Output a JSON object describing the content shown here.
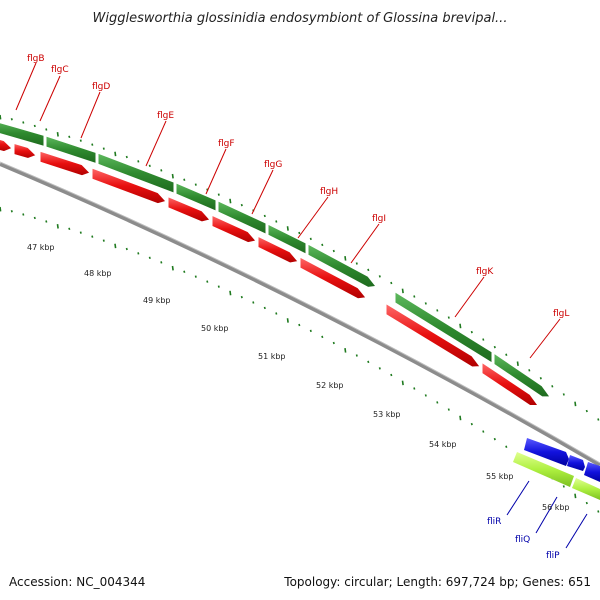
{
  "title": "Wigglesworthia glossinidia endosymbiont of Glossina brevipal...",
  "footer": {
    "accession": "Accession: NC_004344",
    "info": "Topology: circular; Length: 697,724 bp; Genes: 651"
  },
  "colors": {
    "cds_green": "#2f8a2f",
    "cds_red": "#e81010",
    "cds_blue": "#1212dd",
    "cds_light_green": "#aef040",
    "label_red": "#cc0000",
    "label_blue": "#0000aa",
    "backbone": "#8c8c8c",
    "tick_green": "#1f7a1f"
  },
  "genes_top": [
    {
      "label": "flgB"
    },
    {
      "label": "flgC"
    },
    {
      "label": "flgD"
    },
    {
      "label": "flgE"
    },
    {
      "label": "flgF"
    },
    {
      "label": "flgG"
    },
    {
      "label": "flgH"
    },
    {
      "label": "flgI"
    },
    {
      "label": "flgK"
    },
    {
      "label": "flgL"
    }
  ],
  "genes_bottom": [
    {
      "label": "fliR"
    },
    {
      "label": "fliQ"
    },
    {
      "label": "fliP"
    }
  ],
  "kbp_labels": [
    "47 kbp",
    "48 kbp",
    "49 kbp",
    "50 kbp",
    "51 kbp",
    "52 kbp",
    "53 kbp",
    "54 kbp",
    "55 kbp",
    "56 kbp"
  ]
}
